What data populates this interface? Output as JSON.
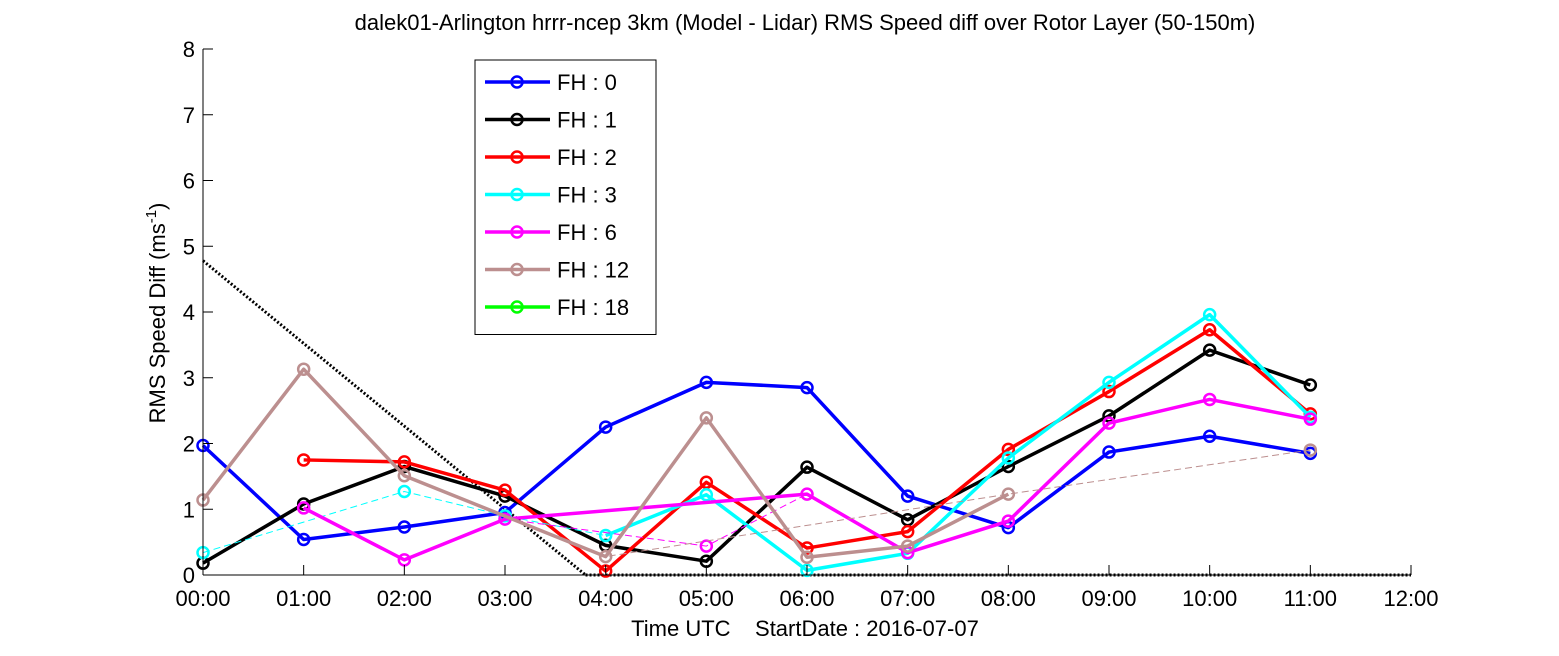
{
  "chart_data": {
    "type": "line",
    "title": "dalek01-Arlington hrrr-ncep 3km (Model - Lidar) RMS Speed diff over Rotor Layer (50-150m)",
    "xlabel": "Time UTC    StartDate : 2016-07-07",
    "ylabel_main": "RMS Speed Diff (ms",
    "ylabel_sup": "-1",
    "ylabel_close": ")",
    "x_tick_labels": [
      "00:00",
      "01:00",
      "02:00",
      "03:00",
      "04:00",
      "05:00",
      "06:00",
      "07:00",
      "08:00",
      "09:00",
      "10:00",
      "11:00",
      "12:00"
    ],
    "y_tick_labels": [
      "0",
      "1",
      "2",
      "3",
      "4",
      "5",
      "6",
      "7",
      "8"
    ],
    "xlim": [
      0,
      12
    ],
    "ylim": [
      0,
      8
    ],
    "grid": false,
    "legend_position": "top-left",
    "series": [
      {
        "name": "FH : 0",
        "color": "#0000ff",
        "solid": [
          [
            0,
            1.97
          ],
          [
            1,
            0.54
          ],
          [
            2,
            0.73
          ],
          [
            3,
            0.95
          ],
          [
            4,
            2.25
          ],
          [
            5,
            2.93
          ],
          [
            6,
            2.85
          ],
          [
            7,
            1.2
          ],
          [
            8,
            0.72
          ],
          [
            9,
            1.87
          ],
          [
            10,
            2.11
          ],
          [
            11,
            1.85
          ]
        ],
        "dashed": []
      },
      {
        "name": "FH : 1",
        "color": "#000000",
        "solid": [
          [
            0,
            0.18
          ],
          [
            1,
            1.08
          ],
          [
            2,
            1.65
          ],
          [
            3,
            1.2
          ],
          [
            4,
            0.45
          ],
          [
            5,
            0.21
          ],
          [
            6,
            1.64
          ],
          [
            7,
            0.84
          ],
          [
            8,
            1.65
          ],
          [
            9,
            2.42
          ],
          [
            10,
            3.42
          ],
          [
            11,
            2.89
          ]
        ],
        "dashed": []
      },
      {
        "name": "FH : 2",
        "color": "#ff0000",
        "solid": [
          [
            1,
            1.75
          ],
          [
            2,
            1.72
          ],
          [
            3,
            1.29
          ],
          [
            4,
            0.06
          ],
          [
            5,
            1.41
          ],
          [
            6,
            0.41
          ],
          [
            7,
            0.66
          ],
          [
            8,
            1.91
          ],
          [
            9,
            2.79
          ],
          [
            10,
            3.73
          ],
          [
            11,
            2.45
          ]
        ],
        "dashed": []
      },
      {
        "name": "FH : 3",
        "color": "#00ffff",
        "solid": [
          [
            4,
            0.6
          ],
          [
            5,
            1.22
          ],
          [
            6,
            0.07
          ],
          [
            7,
            0.33
          ],
          [
            8,
            1.78
          ],
          [
            9,
            2.93
          ],
          [
            10,
            3.96
          ],
          [
            11,
            2.4
          ]
        ],
        "dashed": [
          [
            0,
            0.34
          ],
          [
            2,
            1.27
          ],
          [
            3,
            0.9
          ],
          [
            4,
            0.6
          ]
        ]
      },
      {
        "name": "FH : 6",
        "color": "#ff00ff",
        "solid": [
          [
            1,
            1.02
          ],
          [
            2,
            0.23
          ],
          [
            3,
            0.85
          ],
          [
            6,
            1.23
          ],
          [
            7,
            0.34
          ],
          [
            8,
            0.82
          ],
          [
            9,
            2.31
          ],
          [
            10,
            2.67
          ],
          [
            11,
            2.37
          ]
        ],
        "dashed": [
          [
            3,
            0.85
          ],
          [
            5,
            0.44
          ],
          [
            6,
            1.23
          ]
        ]
      },
      {
        "name": "FH : 12",
        "color": "#bc8f8f",
        "solid": [
          [
            0,
            1.14
          ],
          [
            1,
            3.13
          ],
          [
            2,
            1.51
          ],
          [
            4,
            0.28
          ],
          [
            5,
            2.39
          ],
          [
            6,
            0.27
          ],
          [
            7,
            0.44
          ],
          [
            8,
            1.23
          ]
        ],
        "dashed": [
          [
            2,
            1.51
          ],
          [
            4,
            0.28
          ],
          [
            8,
            1.23
          ],
          [
            11,
            1.9
          ]
        ]
      },
      {
        "name": "FH : 18",
        "color": "#00ff00",
        "solid": [],
        "dashed": []
      }
    ],
    "reference_line": {
      "color": "#000000",
      "points": [
        [
          0,
          4.78
        ],
        [
          3.8,
          0
        ]
      ]
    },
    "baseline": {
      "color": "#000000",
      "points": [
        [
          3.8,
          0
        ],
        [
          12,
          0
        ]
      ]
    }
  }
}
